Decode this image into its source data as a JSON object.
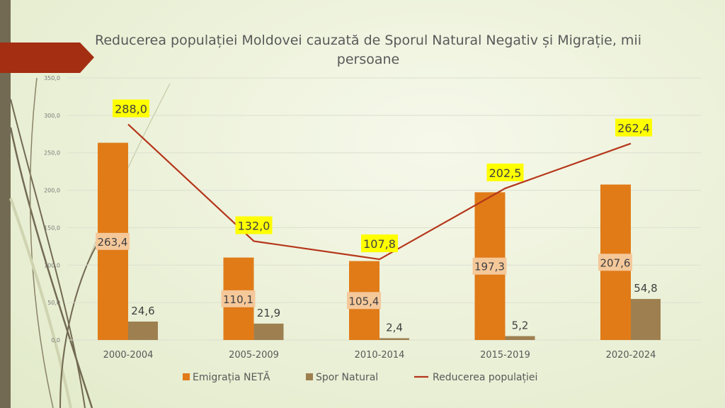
{
  "chart_data": {
    "type": "bar",
    "title": "Reducerea populației Moldovei cauzată de Sporul Natural Negativ și Migrație, mii persoane",
    "categories": [
      "2000-2004",
      "2005-2009",
      "2010-2014",
      "2015-2019",
      "2020-2024"
    ],
    "series": [
      {
        "name": "Emigrația NETĂ",
        "type": "bar",
        "color": "#e07b18",
        "values": [
          263.4,
          110.1,
          105.4,
          197.3,
          207.6
        ],
        "labels": [
          "263,4",
          "110,1",
          "105,4",
          "197,3",
          "207,6"
        ]
      },
      {
        "name": "Spor Natural",
        "type": "bar",
        "color": "#9e8050",
        "values": [
          24.6,
          21.9,
          2.4,
          5.2,
          54.8
        ],
        "labels": [
          "24,6",
          "21,9",
          "2,4",
          "5,2",
          "54,8"
        ]
      },
      {
        "name": "Reducerea populației",
        "type": "line",
        "color": "#b5361a",
        "values": [
          288.0,
          132.0,
          107.8,
          202.5,
          262.4
        ],
        "labels": [
          "288,0",
          "132,0",
          "107,8",
          "202,5",
          "262,4"
        ]
      }
    ],
    "ylim": [
      0,
      350
    ],
    "yticks": [
      "0,0",
      "50,0",
      "100,0",
      "150,0",
      "200,0",
      "250,0",
      "300,0",
      "350,0"
    ],
    "grid": true,
    "legend": "bottom"
  }
}
